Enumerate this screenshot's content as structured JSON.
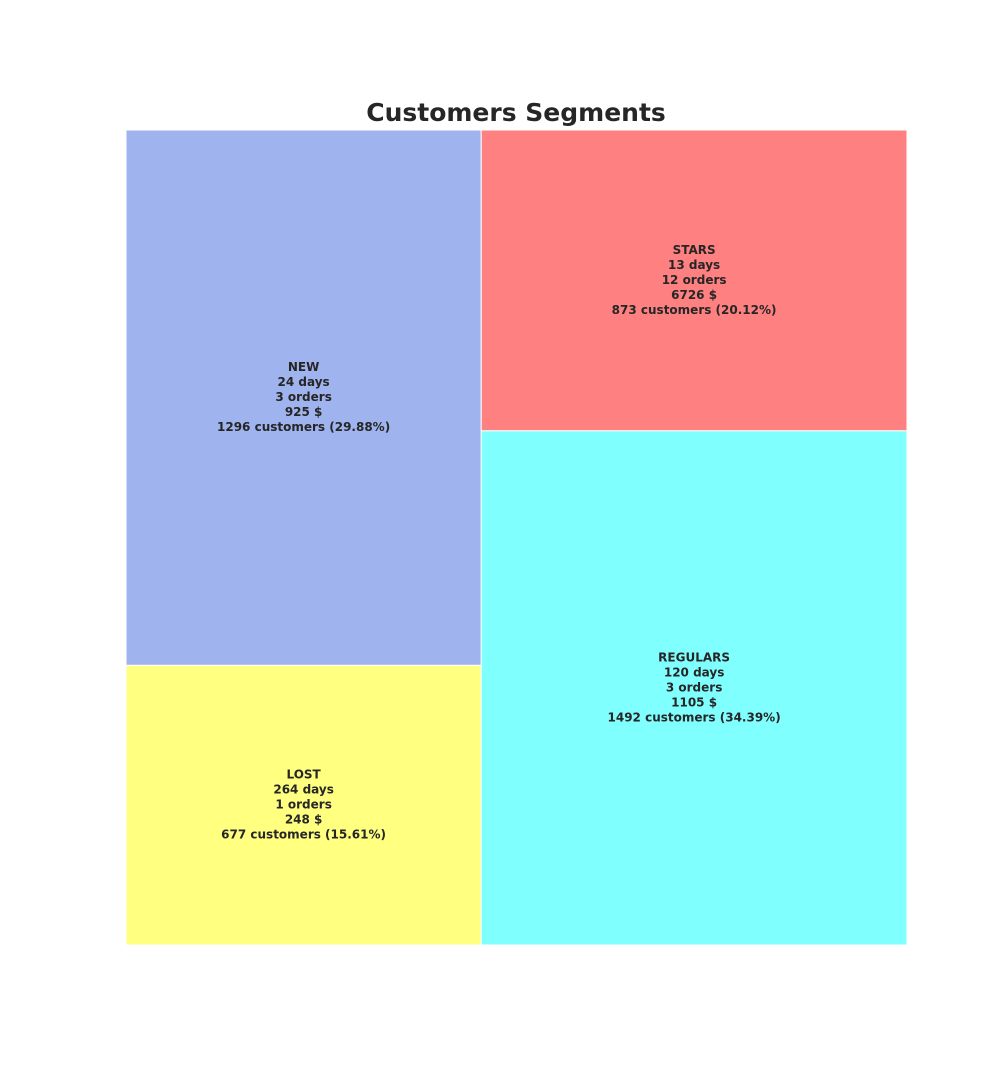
{
  "chart_data": {
    "type": "treemap",
    "title": "Customers Segments",
    "segments": [
      {
        "name": "NEW",
        "days": "24 days",
        "orders": "3 orders",
        "amount": "925 $",
        "customers_label": "1296 customers (29.88%)",
        "customers": 1296,
        "percent": 29.88,
        "color": "#9fb3ee"
      },
      {
        "name": "LOST",
        "days": "264 days",
        "orders": "1 orders",
        "amount": "248 $",
        "customers_label": "677 customers (15.61%)",
        "customers": 677,
        "percent": 15.61,
        "color": "#ffff80"
      },
      {
        "name": "STARS",
        "days": "13 days",
        "orders": "12 orders",
        "amount": "6726 $",
        "customers_label": "873 customers (20.12%)",
        "customers": 873,
        "percent": 20.12,
        "color": "#ff8080"
      },
      {
        "name": "REGULARS",
        "days": "120 days",
        "orders": "3 orders",
        "amount": "1105 $",
        "customers_label": "1492 customers (34.39%)",
        "customers": 1492,
        "percent": 34.39,
        "color": "#80ffff"
      }
    ]
  }
}
